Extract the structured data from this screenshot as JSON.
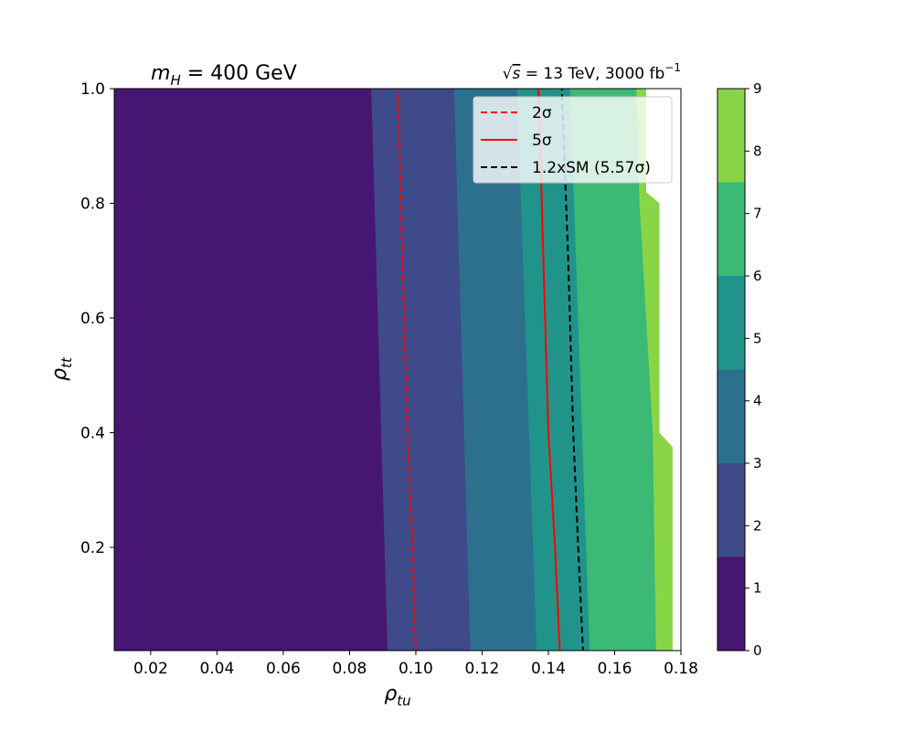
{
  "chart_data": {
    "type": "contour",
    "title_left_base": "m",
    "title_left_sub": "H",
    "title_left_rest": " = 400 GeV",
    "title_right_sqrt": "√",
    "title_right_s": "s",
    "title_right_rest": " = 13 TeV, 3000 fb",
    "title_right_sup": "−1",
    "xlabel_base": "ρ",
    "xlabel_sub": "tu",
    "ylabel_base": "ρ",
    "ylabel_sub": "tt",
    "xlim": [
      0.009,
      0.18
    ],
    "ylim": [
      0.02,
      1.0
    ],
    "x_ticks": [
      "0.02",
      "0.04",
      "0.06",
      "0.08",
      "0.10",
      "0.12",
      "0.14",
      "0.16",
      "0.18"
    ],
    "x_tick_values": [
      0.02,
      0.04,
      0.06,
      0.08,
      0.1,
      0.12,
      0.14,
      0.16,
      0.18
    ],
    "y_ticks": [
      "0.2",
      "0.4",
      "0.6",
      "0.8",
      "1.0"
    ],
    "y_tick_values": [
      0.2,
      0.4,
      0.6,
      0.8,
      1.0
    ],
    "colorbar_ticks": [
      "0",
      "1",
      "2",
      "3",
      "4",
      "5",
      "6",
      "7",
      "8",
      "9"
    ],
    "colorbar_levels": [
      0,
      1.5,
      3,
      4.5,
      6,
      7.5,
      9
    ],
    "colorbar_colors": [
      "#471672",
      "#3e4a89",
      "#2d708e",
      "#20948b",
      "#3bb975",
      "#89d548"
    ],
    "bands": [
      {
        "level": "0–1.5",
        "color": "#471672",
        "right_boundary": [
          [
            0.0865,
            1.0
          ],
          [
            0.0915,
            0.02
          ]
        ]
      },
      {
        "level": "1.5–3",
        "color": "#3e4a89",
        "right_boundary": [
          [
            0.1115,
            1.0
          ],
          [
            0.1165,
            0.02
          ]
        ]
      },
      {
        "level": "3–4.5",
        "color": "#2d708e",
        "right_boundary": [
          [
            0.1305,
            1.0
          ],
          [
            0.1365,
            0.02
          ]
        ]
      },
      {
        "level": "4.5–6",
        "color": "#20948b",
        "right_boundary": [
          [
            0.1465,
            1.0
          ],
          [
            0.1525,
            0.02
          ]
        ]
      },
      {
        "level": "6–7.5",
        "color": "#3bb975",
        "right_boundary": [
          [
            0.1665,
            1.0
          ],
          [
            0.1675,
            0.8
          ],
          [
            0.1715,
            0.4
          ],
          [
            0.1725,
            0.02
          ]
        ]
      },
      {
        "level": "7.5–9",
        "color": "#89d548",
        "right_boundary": [
          [
            0.1695,
            1.0
          ],
          [
            0.1695,
            0.82
          ],
          [
            0.1735,
            0.8
          ],
          [
            0.1735,
            0.4
          ],
          [
            0.1775,
            0.375
          ],
          [
            0.1775,
            0.02
          ]
        ]
      }
    ],
    "lines": [
      {
        "name": "2σ",
        "color": "#ff0000",
        "style": "dashed",
        "points": [
          [
            0.0945,
            1.0
          ],
          [
            0.096,
            0.7
          ],
          [
            0.0975,
            0.4
          ],
          [
            0.099,
            0.2
          ],
          [
            0.1,
            0.02
          ]
        ]
      },
      {
        "name": "5σ",
        "color": "#ff0000",
        "style": "solid",
        "points": [
          [
            0.137,
            1.0
          ],
          [
            0.1385,
            0.7
          ],
          [
            0.14,
            0.4
          ],
          [
            0.142,
            0.2
          ],
          [
            0.1435,
            0.02
          ]
        ]
      },
      {
        "name": "1.2xSM (5.57σ)",
        "color": "#000000",
        "style": "dashed",
        "points": [
          [
            0.144,
            1.0
          ],
          [
            0.146,
            0.7
          ],
          [
            0.1475,
            0.4
          ],
          [
            0.149,
            0.2
          ],
          [
            0.1505,
            0.02
          ]
        ]
      }
    ],
    "legend_entries": [
      "2σ",
      "5σ",
      "1.2xSM (5.57σ)"
    ],
    "legend_position": "top-right",
    "grid": false
  }
}
